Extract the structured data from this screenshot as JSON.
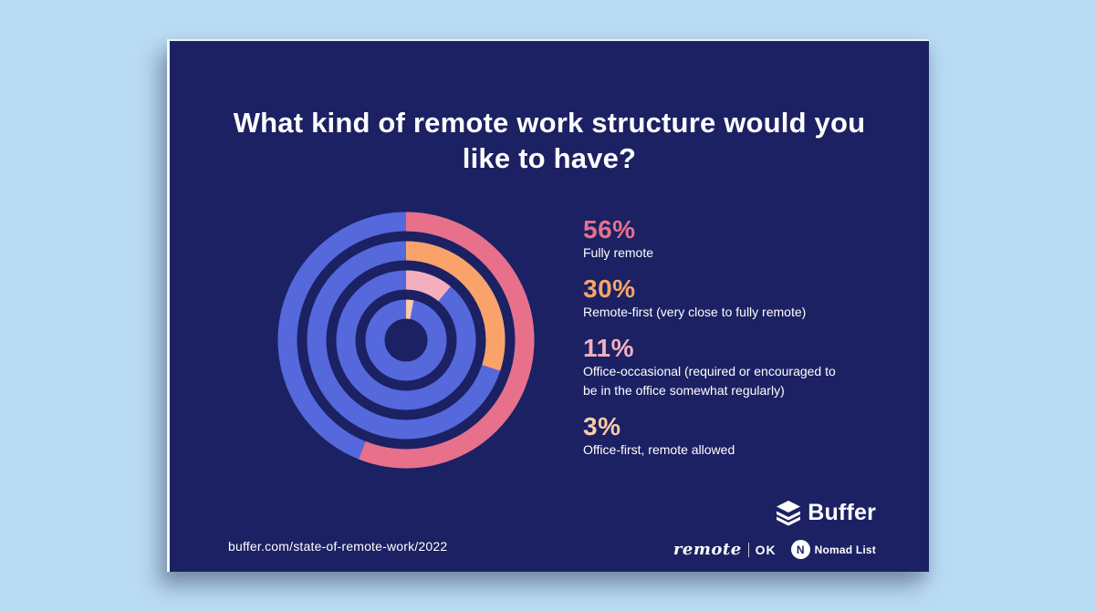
{
  "title": "What kind of remote work structure would you like to have?",
  "chart_data": {
    "type": "pie",
    "variant": "concentric-donut-rings",
    "title": "What kind of remote work structure would you like to have?",
    "categories": [
      "Fully remote",
      "Remote-first (very close to fully remote)",
      "Office-occasional (required or encouraged to be in the office somewhat regularly)",
      "Office-first, remote allowed"
    ],
    "values": [
      56,
      30,
      11,
      3
    ],
    "colors": [
      "#E8708A",
      "#F9A36B",
      "#F3AFBE",
      "#F9CBA7"
    ],
    "track_color": "#5568DC",
    "background_color": "#1B2163",
    "start_angle_deg": 0,
    "direction": "clockwise",
    "rings_outer_to_inner": true,
    "legend_position": "right"
  },
  "legend": {
    "items": [
      {
        "pct": "56%",
        "label": "Fully remote",
        "color": "#E8708A"
      },
      {
        "pct": "30%",
        "label": "Remote-first (very close to fully remote)",
        "color": "#F9A36B"
      },
      {
        "pct": "11%",
        "label": "Office-occasional (required or encouraged to be in the office somewhat regularly)",
        "color": "#F3AFBE"
      },
      {
        "pct": "3%",
        "label": "Office-first, remote allowed",
        "color": "#F9CBA7"
      }
    ]
  },
  "footer": {
    "url": "buffer.com/state-of-remote-work/2022",
    "buffer_logo_text": "Buffer",
    "remote_ok": {
      "remote": "remote",
      "ok": "OK"
    },
    "nomad_list": {
      "label": "Nomad List",
      "icon_letter": "N"
    }
  },
  "colors": {
    "page_bg": "#B9DBF3",
    "card_bg": "#1B2163",
    "text": "#FFFFFF"
  }
}
